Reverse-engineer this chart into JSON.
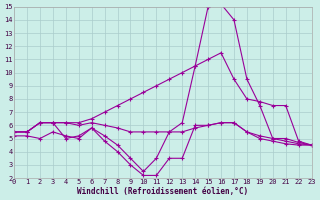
{
  "line1_x": [
    0,
    1,
    2,
    3,
    4,
    5,
    6,
    7,
    8,
    9,
    10,
    11,
    12,
    13,
    14,
    15,
    16,
    17,
    18,
    19,
    20,
    21,
    22,
    23
  ],
  "line1_y": [
    5.5,
    5.5,
    6.2,
    6.2,
    6.2,
    6.2,
    6.5,
    7.0,
    7.5,
    8.0,
    8.5,
    9.0,
    9.5,
    10.0,
    10.5,
    11.0,
    11.5,
    9.5,
    8.0,
    7.8,
    7.5,
    7.5,
    4.8,
    4.5
  ],
  "line2_x": [
    0,
    1,
    2,
    3,
    4,
    5,
    6,
    7,
    8,
    9,
    10,
    11,
    12,
    13,
    14,
    15,
    16,
    17,
    18,
    19,
    20,
    21,
    22,
    23
  ],
  "line2_y": [
    5.5,
    5.5,
    6.2,
    6.2,
    6.2,
    6.0,
    6.2,
    6.0,
    5.8,
    5.5,
    5.5,
    5.5,
    5.5,
    5.5,
    5.8,
    6.0,
    6.2,
    6.2,
    5.5,
    5.2,
    5.0,
    4.8,
    4.6,
    4.5
  ],
  "line3_x": [
    0,
    1,
    2,
    3,
    4,
    5,
    6,
    7,
    8,
    9,
    10,
    11,
    12,
    13,
    14,
    15,
    16,
    17,
    18,
    19,
    20,
    21,
    22,
    23
  ],
  "line3_y": [
    5.5,
    5.5,
    6.2,
    6.2,
    5.0,
    5.2,
    5.8,
    5.2,
    4.5,
    3.5,
    2.5,
    3.5,
    5.5,
    6.2,
    10.5,
    15.0,
    15.2,
    14.0,
    9.5,
    7.5,
    5.0,
    5.0,
    4.7,
    4.5
  ],
  "line4_x": [
    0,
    1,
    2,
    3,
    4,
    5,
    6,
    7,
    8,
    9,
    10,
    11,
    12,
    13,
    14,
    15,
    16,
    17,
    18,
    19,
    20,
    21,
    22,
    23
  ],
  "line4_y": [
    5.2,
    5.2,
    5.0,
    5.5,
    5.2,
    5.0,
    5.8,
    4.8,
    4.0,
    3.0,
    2.2,
    2.2,
    3.5,
    3.5,
    6.0,
    6.0,
    6.2,
    6.2,
    5.5,
    5.0,
    4.8,
    4.6,
    4.5,
    4.5
  ],
  "line_color": "#990099",
  "bg_color": "#cceee8",
  "grid_color": "#aacccc",
  "xlabel": "Windchill (Refroidissement éolien,°C)",
  "ylim": [
    2,
    15
  ],
  "xlim": [
    0,
    23
  ],
  "yticks": [
    2,
    3,
    4,
    5,
    6,
    7,
    8,
    9,
    10,
    11,
    12,
    13,
    14,
    15
  ],
  "xticks": [
    0,
    1,
    2,
    3,
    4,
    5,
    6,
    7,
    8,
    9,
    10,
    11,
    12,
    13,
    14,
    15,
    16,
    17,
    18,
    19,
    20,
    21,
    22,
    23
  ]
}
